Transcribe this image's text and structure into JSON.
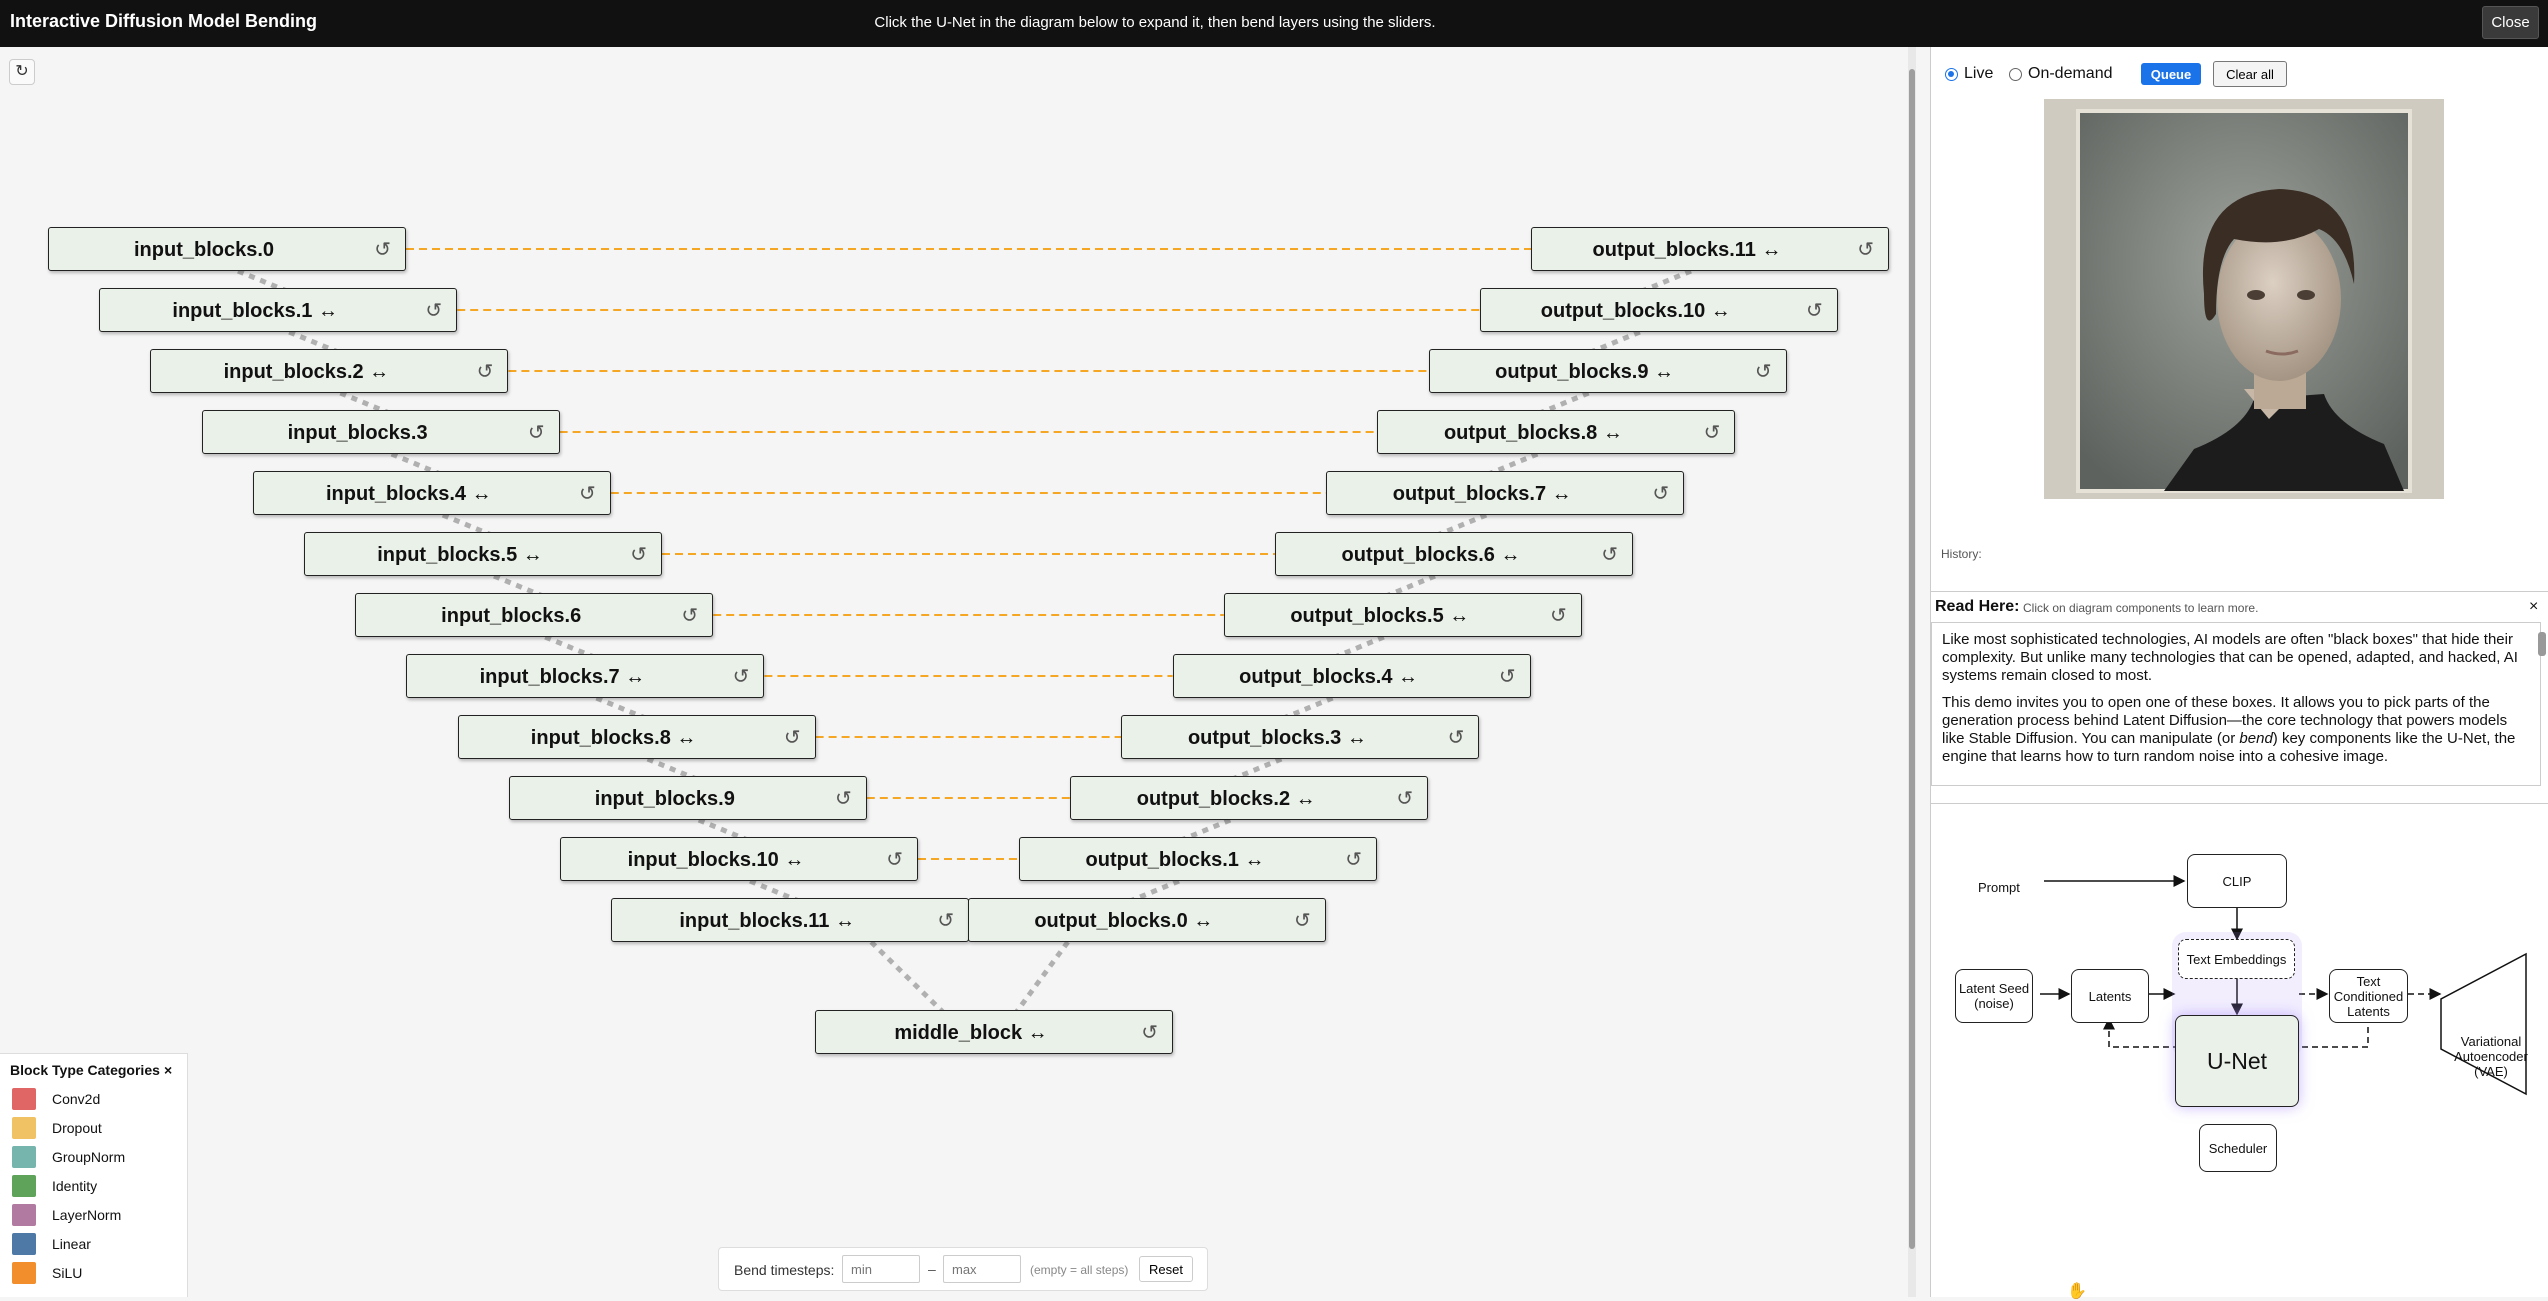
{
  "header": {
    "title": "Interactive Diffusion Model Bending",
    "instructions": "Click the U-Net in the diagram below to expand it, then bend layers using the sliders.",
    "close_label": "Close"
  },
  "diagram": {
    "refresh_icon": "↻",
    "reset_icon": "↺",
    "input_blocks": [
      "input_blocks.0",
      "input_blocks.1 ↔",
      "input_blocks.2 ↔",
      "input_blocks.3",
      "input_blocks.4 ↔",
      "input_blocks.5 ↔",
      "input_blocks.6",
      "input_blocks.7 ↔",
      "input_blocks.8 ↔",
      "input_blocks.9",
      "input_blocks.10 ↔",
      "input_blocks.11 ↔"
    ],
    "output_blocks": [
      "output_blocks.11 ↔",
      "output_blocks.10 ↔",
      "output_blocks.9 ↔",
      "output_blocks.8 ↔",
      "output_blocks.7 ↔",
      "output_blocks.6 ↔",
      "output_blocks.5 ↔",
      "output_blocks.4 ↔",
      "output_blocks.3 ↔",
      "output_blocks.2 ↔",
      "output_blocks.1 ↔",
      "output_blocks.0 ↔"
    ],
    "middle_block": "middle_block ↔",
    "skip_color": "#f5a623",
    "chain_color": "#b0b0b0"
  },
  "legend": {
    "title": "Block Type Categories",
    "close": "×",
    "items": [
      {
        "name": "Conv2d",
        "color": "#e06666"
      },
      {
        "name": "Dropout",
        "color": "#f1c264"
      },
      {
        "name": "GroupNorm",
        "color": "#76b5ae"
      },
      {
        "name": "Identity",
        "color": "#5fa35a"
      },
      {
        "name": "LayerNorm",
        "color": "#b07aa1"
      },
      {
        "name": "Linear",
        "color": "#4e79a7"
      },
      {
        "name": "SiLU",
        "color": "#f28e2b"
      }
    ]
  },
  "bend": {
    "label": "Bend timesteps:",
    "min_placeholder": "min",
    "separator": "–",
    "max_placeholder": "max",
    "hint": "(empty = all steps)",
    "reset_label": "Reset"
  },
  "panel": {
    "live_label": "Live",
    "ondemand_label": "On-demand",
    "queue_label": "Queue",
    "clear_label": "Clear all",
    "history_label": "History:",
    "read_title": "Read Here:",
    "read_sub": "Click on diagram components to learn more.",
    "read_close": "×",
    "read_p1": "Like most sophisticated technologies, AI models are often \"black boxes\" that hide their complexity. But unlike many technologies that can be opened, adapted, and hacked, AI systems remain closed to most.",
    "read_p2_a": "This demo invites you to open one of these boxes. It allows you to pick parts of the generation process behind Latent Diffusion—the core technology that powers models like Stable Diffusion. You can manipulate (or ",
    "read_p2_em": "bend",
    "read_p2_b": ") key components like the U-Net, the engine that learns how to turn random noise into a cohesive image."
  },
  "flow": {
    "prompt": "Prompt",
    "clip": "CLIP",
    "text_embeddings": "Text Embeddings",
    "unet": "U-Net",
    "latent_seed": "Latent Seed (noise)",
    "latents": "Latents",
    "text_conditioned": "Text Conditioned Latents",
    "vae": "Variational Autoencoder (VAE)",
    "scheduler": "Scheduler"
  }
}
